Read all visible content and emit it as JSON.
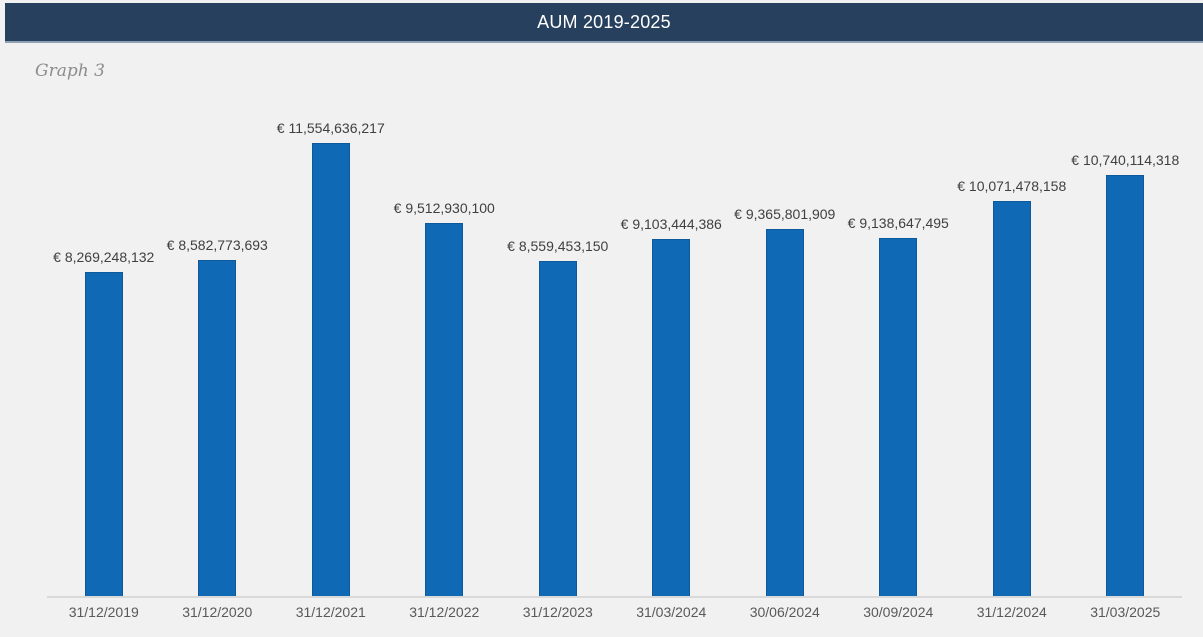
{
  "header": {
    "title": "AUM 2019-2025"
  },
  "graph_label": "Graph 3",
  "chart_data": {
    "type": "bar",
    "title": "AUM 2019-2025",
    "categories": [
      "31/12/2019",
      "31/12/2020",
      "31/12/2021",
      "31/12/2022",
      "31/12/2023",
      "31/03/2024",
      "30/06/2024",
      "30/09/2024",
      "31/12/2024",
      "31/03/2025"
    ],
    "values": [
      8269248132,
      8582773693,
      11554636217,
      9512930100,
      8559453150,
      9103444386,
      9365801909,
      9138647495,
      10071478158,
      10740114318
    ],
    "data_labels": [
      "€ 8,269,248,132",
      "€ 8,582,773,693",
      "€ 11,554,636,217",
      "€ 9,512,930,100",
      "€ 8,559,453,150",
      "€ 9,103,444,386",
      "€ 9,365,801,909",
      "€ 9,138,647,495",
      "€ 10,071,478,158",
      "€ 10,740,114,318"
    ],
    "xlabel": "",
    "ylabel": "",
    "ylim": [
      0,
      11554636217
    ],
    "grid": false,
    "legend": false,
    "bar_color": "#0F69B4"
  },
  "colors": {
    "header_bg": "#27405E",
    "header_border": "#8FA0B5",
    "page_bg": "#F1F1F2",
    "bar": "#0F69B4",
    "bar_border": "#0C5A9C",
    "axis_line": "#D9D9D9",
    "value_label": "#404040",
    "category_label": "#595959",
    "graph_label": "#8C8C8C",
    "title_text": "#FFFFFF"
  }
}
